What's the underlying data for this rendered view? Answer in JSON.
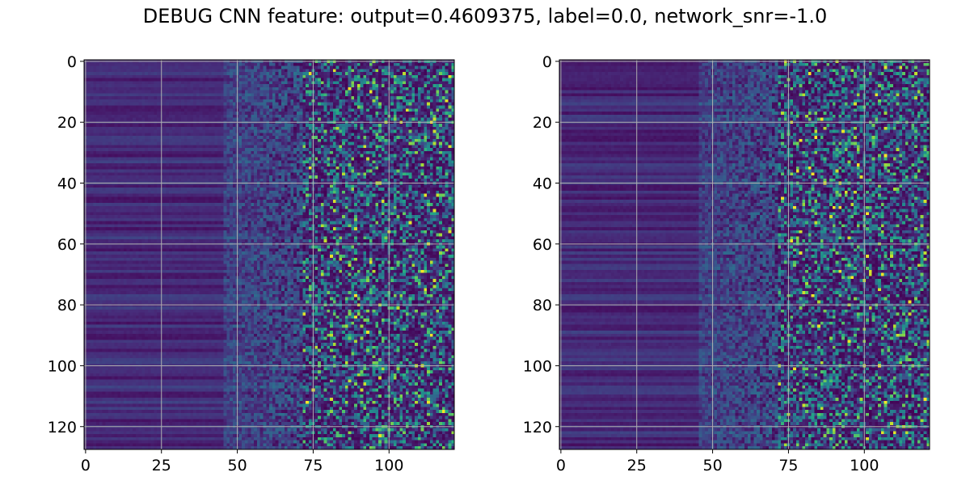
{
  "figure": {
    "suptitle": "DEBUG CNN feature: output=0.4609375, label=0.0, network_snr=-1.0"
  },
  "chart_data": [
    {
      "type": "heatmap",
      "title": "",
      "xlabel": "",
      "ylabel": "",
      "x_ticks": [
        0,
        25,
        50,
        75,
        100
      ],
      "y_ticks": [
        0,
        20,
        40,
        60,
        80,
        100,
        120
      ],
      "xlim": [
        -0.5,
        121.5
      ],
      "ylim": [
        127.5,
        -0.5
      ],
      "shape": [
        128,
        122
      ],
      "colormap": "viridis",
      "grid": true,
      "seed": 11
    },
    {
      "type": "heatmap",
      "title": "",
      "xlabel": "",
      "ylabel": "",
      "x_ticks": [
        0,
        25,
        50,
        75,
        100
      ],
      "y_ticks": [
        0,
        20,
        40,
        60,
        80,
        100,
        120
      ],
      "xlim": [
        -0.5,
        121.5
      ],
      "ylim": [
        127.5,
        -0.5
      ],
      "shape": [
        128,
        122
      ],
      "colormap": "viridis",
      "grid": true,
      "seed": 29
    }
  ]
}
